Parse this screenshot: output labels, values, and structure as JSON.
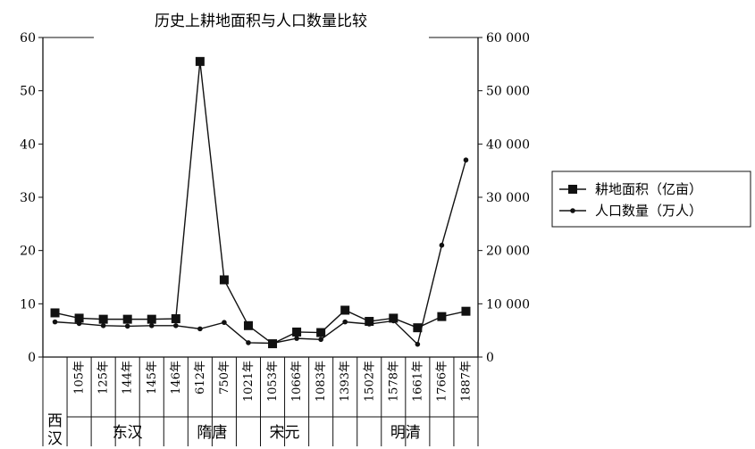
{
  "chart_data": {
    "type": "line",
    "title": "历史上耕地面积与人口数量比较",
    "categories": [
      "",
      "105年",
      "125年",
      "144年",
      "145年",
      "146年",
      "612年",
      "750年",
      "1021年",
      "1053年",
      "1066年",
      "1083年",
      "1393年",
      "1502年",
      "1578年",
      "1661年",
      "1766年",
      "1887年"
    ],
    "groups": [
      {
        "label": "西汉",
        "count": 1
      },
      {
        "label": "东汉",
        "count": 5
      },
      {
        "label": "隋唐",
        "count": 2
      },
      {
        "label": "宋元",
        "count": 4
      },
      {
        "label": "明清",
        "count": 6
      }
    ],
    "y_left": {
      "ticks": [
        "0",
        "10",
        "20",
        "30",
        "40",
        "50",
        "60"
      ],
      "range": [
        0,
        60
      ]
    },
    "y_right": {
      "ticks": [
        "0",
        "10 000",
        "20 000",
        "30 000",
        "40 000",
        "50 000",
        "60 000"
      ],
      "range": [
        0,
        60000
      ]
    },
    "series": [
      {
        "name": "耕地面积（亿亩）",
        "axis": "left",
        "marker": "square",
        "color": "#111111",
        "values": [
          8.3,
          7.3,
          7.1,
          7.1,
          7.1,
          7.2,
          55.5,
          14.5,
          5.9,
          2.5,
          4.7,
          4.6,
          8.8,
          6.7,
          7.3,
          5.5,
          7.6,
          8.6
        ]
      },
      {
        "name": "人口数量（万人）",
        "axis": "right",
        "marker": "dot",
        "color": "#111111",
        "values": [
          6600,
          6300,
          5900,
          5800,
          5900,
          5900,
          5300,
          6500,
          2700,
          2600,
          3500,
          3300,
          6600,
          6200,
          6800,
          2400,
          21000,
          37000
        ]
      }
    ],
    "grid": false,
    "legend_position": "right"
  }
}
